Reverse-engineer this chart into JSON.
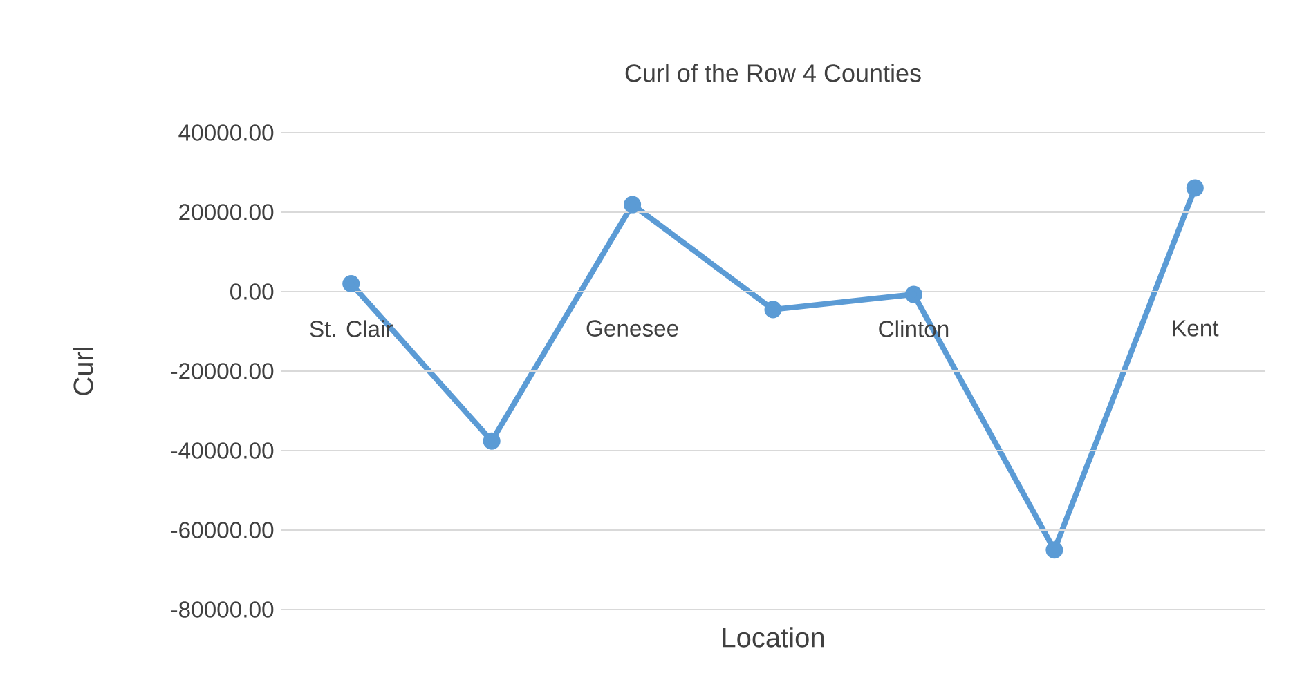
{
  "chart_data": {
    "type": "line",
    "title": "Curl of the Row 4 Counties",
    "xlabel": "Location",
    "ylabel": "Curl",
    "categories": [
      "St. Clair",
      null,
      "Genesee",
      null,
      "Clinton",
      null,
      "Kent"
    ],
    "series": [
      {
        "color": "#5b9bd5",
        "values": [
          2000,
          -37600,
          21900,
          -4500,
          -700,
          -65000,
          26100
        ]
      }
    ],
    "ylim": [
      -80000,
      40000
    ],
    "yticks": [
      {
        "value": -80000,
        "label": "-80000.00"
      },
      {
        "value": -60000,
        "label": "-60000.00"
      },
      {
        "value": -40000,
        "label": "-40000.00"
      },
      {
        "value": -20000,
        "label": "-20000.00"
      },
      {
        "value": 0,
        "label": "0.00"
      },
      {
        "value": 20000,
        "label": "20000.00"
      },
      {
        "value": 40000,
        "label": "40000.00"
      }
    ],
    "grid": "y",
    "marker": "circle",
    "line_style": "solid"
  }
}
